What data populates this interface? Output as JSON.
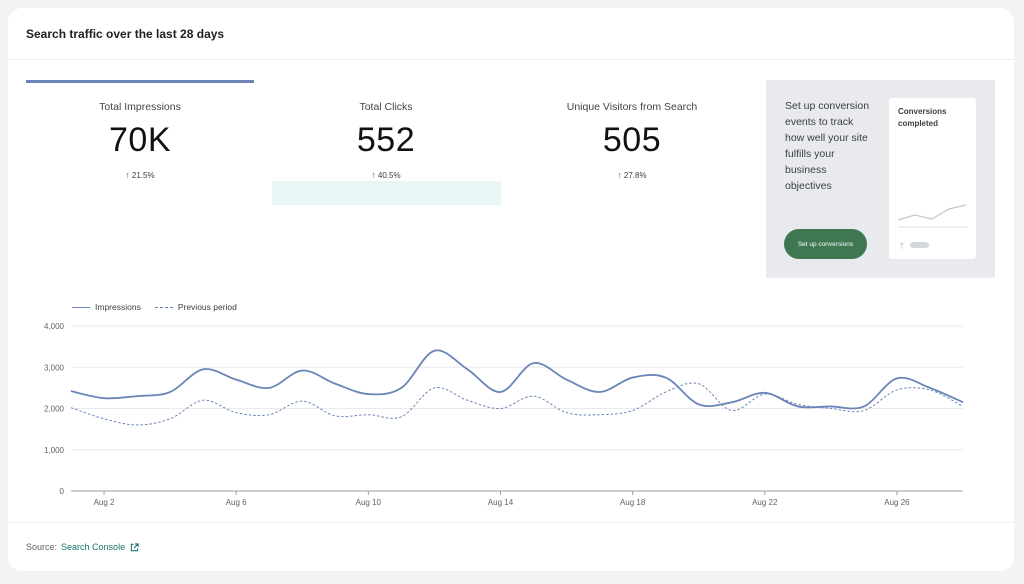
{
  "card": {
    "title": "Search traffic over the last 28 days"
  },
  "kpis": [
    {
      "label": "Total Impressions",
      "value": "70K",
      "change": "21.5%",
      "active": true
    },
    {
      "label": "Total Clicks",
      "value": "552",
      "change": "40.5%",
      "active": false
    },
    {
      "label": "Unique Visitors from Search",
      "value": "505",
      "change": "27.8%",
      "active": false
    }
  ],
  "cta": {
    "text": "Set up conversion events to track how well your site fulfills your business objectives",
    "button_label": "Set up conversions",
    "mini_title": "Conversions completed"
  },
  "legend": {
    "impressions": "Impressions",
    "previous": "Previous period"
  },
  "colors": {
    "accent": "#6b85b9",
    "button": "#3f7751",
    "up_arrow": "#2e7d32",
    "link": "#1a7370"
  },
  "icons": {
    "up_arrow": "arrow-up-icon",
    "external": "external-link-icon"
  },
  "chart_data": {
    "type": "line",
    "ylim": [
      0,
      4000
    ],
    "yticks": [
      0,
      1000,
      2000,
      3000,
      4000
    ],
    "ytick_labels": [
      "0",
      "1,000",
      "2,000",
      "3,000",
      "4,000"
    ],
    "xtick_labels": [
      "Aug 2",
      "Aug 6",
      "Aug 10",
      "Aug 14",
      "Aug 18",
      "Aug 22",
      "Aug 26"
    ],
    "xtick_index": [
      1,
      5,
      9,
      13,
      17,
      21,
      25
    ],
    "grid": true,
    "legend_position": "top-left",
    "series": [
      {
        "name": "Impressions",
        "style": "solid",
        "values": [
          2420,
          2250,
          2300,
          2400,
          2950,
          2700,
          2500,
          2920,
          2600,
          2350,
          2500,
          3400,
          2950,
          2400,
          3100,
          2700,
          2400,
          2750,
          2750,
          2100,
          2150,
          2380,
          2050,
          2050,
          2050,
          2730,
          2500,
          2150
        ]
      },
      {
        "name": "Previous period",
        "style": "dashed",
        "values": [
          2020,
          1750,
          1600,
          1750,
          2200,
          1900,
          1850,
          2180,
          1820,
          1850,
          1800,
          2500,
          2200,
          2000,
          2300,
          1900,
          1850,
          1950,
          2400,
          2600,
          1950,
          2350,
          2100,
          2000,
          1950,
          2450,
          2450,
          2050
        ]
      }
    ]
  },
  "footer": {
    "source_label": "Source:",
    "source_link": "Search Console"
  }
}
